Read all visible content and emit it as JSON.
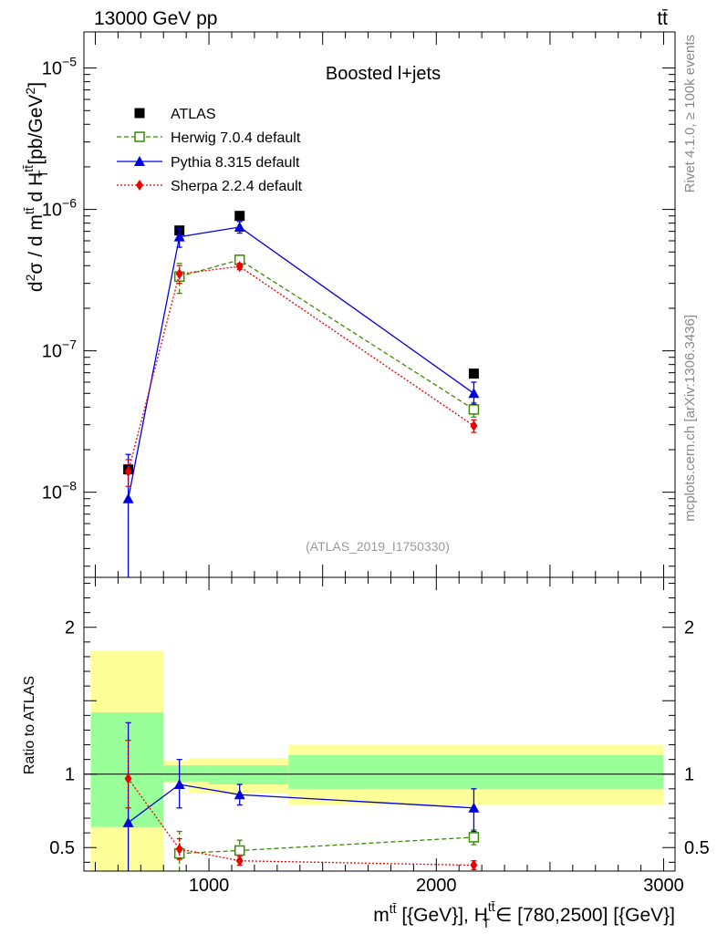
{
  "header": {
    "left": "13000 GeV pp",
    "right": "tt̄"
  },
  "side_labels": {
    "rivet": "Rivet 4.1.0, ≥ 100k events",
    "mcplots": "mcplots.cern.ch [arXiv:1306.3436]"
  },
  "watermark": "(ATLAS_2019_I1750330)",
  "chart_data": [
    {
      "type": "scatter",
      "title": "Boosted l+jets",
      "ylabel": "d²σ / d m^tt̄ d H_T^tt̄ [pb/GeV²]",
      "yscale": "log",
      "ylim": [
        2.5e-09,
        1.8e-05
      ],
      "xlim": [
        450,
        3050
      ],
      "y_ticks": [
        {
          "value": 1e-08,
          "base": "10",
          "exp": "−8"
        },
        {
          "value": 1e-07,
          "base": "10",
          "exp": "−7"
        },
        {
          "value": 1e-06,
          "base": "10",
          "exp": "−6"
        },
        {
          "value": 1e-05,
          "base": "10",
          "exp": "−5"
        }
      ],
      "legend": [
        "ATLAS",
        "Herwig 7.0.4 default",
        "Pythia 8.315 default",
        "Sherpa 2.2.4 default"
      ],
      "legend_position": "top-left",
      "bins": [
        {
          "low": 480,
          "high": 800
        },
        {
          "low": 800,
          "high": 1000
        },
        {
          "low": 1000,
          "high": 1350
        },
        {
          "low": 1350,
          "high": 3000
        }
      ],
      "series": [
        {
          "name": "ATLAS",
          "color": "#000000",
          "marker": "square",
          "x": [
            645,
            870,
            1135,
            2165
          ],
          "y": [
            1.45e-08,
            7.1e-07,
            9e-07,
            6.9e-08
          ],
          "yerr": [
            [
              0,
              0
            ],
            [
              0,
              0
            ],
            [
              0,
              0
            ],
            [
              0,
              0
            ]
          ]
        },
        {
          "name": "Herwig 7.0.4 default",
          "color": "#3a8a00",
          "marker": "open-square",
          "linestyle": "dashed",
          "x": [
            870,
            1135,
            2165
          ],
          "y": [
            3.35e-07,
            4.4e-07,
            3.85e-08
          ],
          "yerr": [
            [
              8e-08,
              8e-08
            ],
            [
              3.5e-08,
              3.5e-08
            ],
            [
              4.5e-09,
              4.5e-09
            ]
          ]
        },
        {
          "name": "Pythia 8.315 default",
          "color": "#0000dd",
          "marker": "triangle",
          "linestyle": "solid",
          "x": [
            645,
            870,
            1135,
            2165
          ],
          "y": [
            9e-09,
            6.4e-07,
            7.5e-07,
            5e-08
          ],
          "yerr": [
            [
              7e-09,
              9.5e-09
            ],
            [
              1e-07,
              1e-07
            ],
            [
              7e-08,
              7e-08
            ],
            [
              8e-09,
              1e-08
            ]
          ]
        },
        {
          "name": "Sherpa 2.2.4 default",
          "color": "#ee0000",
          "marker": "diamond",
          "linestyle": "dotted",
          "x": [
            645,
            870,
            1135,
            2165
          ],
          "y": [
            1.4e-08,
            3.5e-07,
            3.95e-07,
            2.95e-08
          ],
          "yerr": [
            [
              3e-09,
              3e-09
            ],
            [
              5e-08,
              5e-08
            ],
            [
              2e-08,
              2e-08
            ],
            [
              3e-09,
              3e-09
            ]
          ]
        }
      ]
    },
    {
      "type": "scatter",
      "title": "",
      "ylabel": "Ratio to ATLAS",
      "xlabel": "m^tt̄ [{GeV}], H_T^tt̄ ∈ [780,2500] [{GeV}]",
      "ylim": [
        0.34,
        2.34
      ],
      "xlim": [
        450,
        3050
      ],
      "x_ticks": [
        1000,
        2000,
        3000
      ],
      "y_ticks": [
        0.5,
        1,
        2
      ],
      "uncertainty_bands": [
        {
          "low": 480,
          "high": 800,
          "yellow": [
            0.22,
            1.84
          ],
          "green": [
            0.64,
            1.42
          ]
        },
        {
          "low": 800,
          "high": 910,
          "yellow": [
            0.94,
            1.09
          ],
          "green": [
            0.95,
            1.06
          ]
        },
        {
          "low": 910,
          "high": 1000,
          "yellow": [
            0.87,
            1.11
          ],
          "green": [
            0.95,
            1.06
          ]
        },
        {
          "low": 1000,
          "high": 1350,
          "yellow": [
            0.87,
            1.11
          ],
          "green": [
            0.93,
            1.06
          ]
        },
        {
          "low": 1350,
          "high": 3000,
          "yellow": [
            0.79,
            1.2
          ],
          "green": [
            0.9,
            1.13
          ]
        }
      ],
      "series": [
        {
          "name": "Herwig 7.0.4 default",
          "color": "#3a8a00",
          "marker": "open-square",
          "linestyle": "dashed",
          "x": [
            870,
            1135,
            2165
          ],
          "y": [
            0.46,
            0.48,
            0.57
          ],
          "yerr": [
            [
              0.12,
              0.15
            ],
            [
              0.06,
              0.07
            ],
            [
              0.05,
              0.05
            ]
          ]
        },
        {
          "name": "Pythia 8.315 default",
          "color": "#0000dd",
          "marker": "triangle",
          "linestyle": "solid",
          "x": [
            645,
            870,
            1135,
            2165
          ],
          "y": [
            0.67,
            0.93,
            0.86,
            0.77
          ],
          "yerr": [
            [
              0.55,
              0.68
            ],
            [
              0.16,
              0.17
            ],
            [
              0.07,
              0.07
            ],
            [
              0.16,
              0.13
            ]
          ]
        },
        {
          "name": "Sherpa 2.2.4 default",
          "color": "#ee0000",
          "marker": "diamond",
          "linestyle": "dotted",
          "x": [
            645,
            870,
            1135,
            2165
          ],
          "y": [
            0.97,
            0.49,
            0.41,
            0.38
          ],
          "yerr": [
            [
              0.2,
              0.26
            ],
            [
              0.07,
              0.07
            ],
            [
              0.03,
              0.03
            ],
            [
              0.03,
              0.03
            ]
          ]
        }
      ]
    }
  ]
}
